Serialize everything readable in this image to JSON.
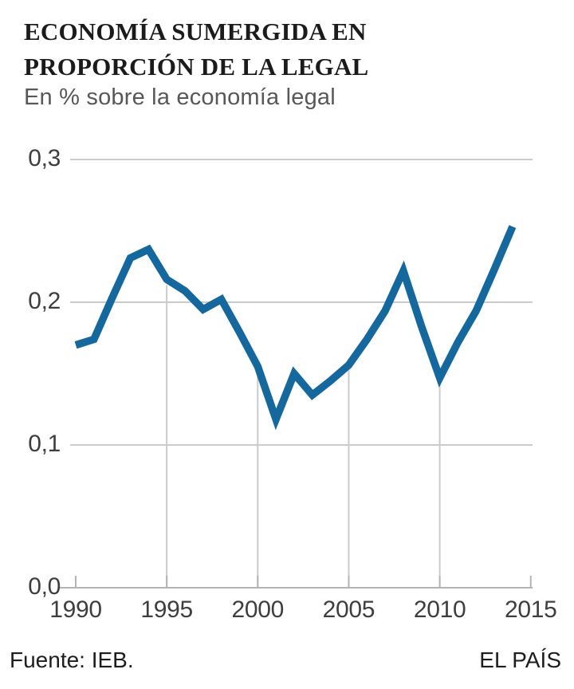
{
  "header": {
    "title_line1": "ECONOMÍA SUMERGIDA EN",
    "title_line2": "PROPORCIÓN DE LA LEGAL",
    "subtitle": "En % sobre la economía legal"
  },
  "footer": {
    "source": "Fuente: IEB.",
    "brand": "EL PAÍS"
  },
  "chart_data": {
    "type": "line",
    "title": "ECONOMÍA SUMERGIDA EN PROPORCIÓN DE LA LEGAL",
    "subtitle": "En % sobre la economía legal",
    "x": [
      1990,
      1991,
      1992,
      1993,
      1994,
      1995,
      1996,
      1997,
      1998,
      1999,
      2000,
      2001,
      2002,
      2003,
      2004,
      2005,
      2006,
      2007,
      2008,
      2009,
      2010,
      2011,
      2012,
      2013,
      2014
    ],
    "values": [
      0.17,
      0.174,
      0.203,
      0.231,
      0.237,
      0.216,
      0.208,
      0.195,
      0.202,
      0.179,
      0.155,
      0.118,
      0.15,
      0.135,
      0.145,
      0.156,
      0.174,
      0.194,
      0.222,
      0.183,
      0.147,
      0.172,
      0.194,
      0.223,
      0.253
    ],
    "xlabel": "",
    "ylabel": "",
    "xlim": [
      1990,
      2015
    ],
    "ylim": [
      0,
      0.3
    ],
    "x_ticks": [
      1990,
      1995,
      2000,
      2005,
      2010,
      2015
    ],
    "y_ticks": [
      {
        "value": 0.3,
        "label": "0,3"
      },
      {
        "value": 0.2,
        "label": "0,2"
      },
      {
        "value": 0.1,
        "label": "0,1"
      },
      {
        "value": 0.0,
        "label": "0,0"
      }
    ],
    "grid": "horizontal gridlines at y ticks; vertical gridlines at 5-year ticks drawn from axis up to the series line",
    "vertical_grid_years": [
      1995,
      2000,
      2005,
      2010
    ],
    "legend": "none",
    "line_color": "#15689E",
    "grid_color": "#cbcbcb",
    "axis_color": "#b4b4b4",
    "tick_label_color": "#3e3e3e"
  }
}
